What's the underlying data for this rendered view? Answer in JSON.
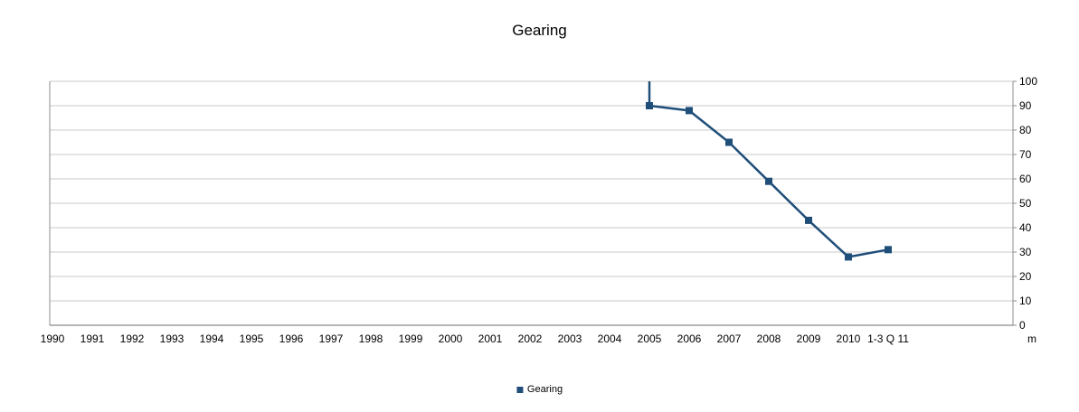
{
  "chart_data": {
    "type": "line",
    "title": "Gearing",
    "categories": [
      "1990",
      "1991",
      "1992",
      "1993",
      "1994",
      "1995",
      "1996",
      "1997",
      "1998",
      "1999",
      "2000",
      "2001",
      "2002",
      "2003",
      "2004",
      "2005",
      "2006",
      "2007",
      "2008",
      "2009",
      "2010",
      "1-3 Q 11"
    ],
    "series": [
      {
        "name": "Gearing",
        "color": "#1f4e79",
        "values": [
          null,
          null,
          null,
          null,
          null,
          null,
          null,
          null,
          null,
          null,
          null,
          null,
          null,
          null,
          null,
          90,
          88,
          75,
          59,
          43,
          28,
          31
        ]
      }
    ],
    "clipped_entry": {
      "category": "2005",
      "from_value": 100
    },
    "ylim": [
      0,
      100
    ],
    "ytick_step": 10,
    "yticks": [
      0,
      10,
      20,
      30,
      40,
      50,
      60,
      70,
      80,
      90,
      100
    ],
    "y_axis_side": "right",
    "axis_unit_label": "m",
    "grid": "horizontal",
    "grid_color": "#c9c9c9",
    "axis_color": "#8e8e8e",
    "legend": {
      "position": "bottom",
      "label": "Gearing"
    }
  }
}
